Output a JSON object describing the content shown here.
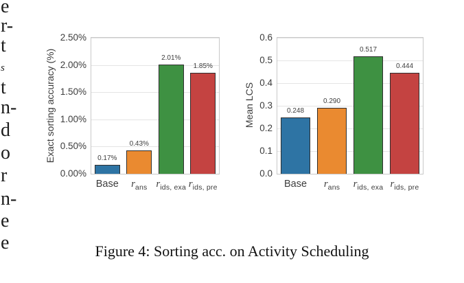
{
  "figure": {
    "caption": "Figure 4: Sorting acc. on Activity Scheduling"
  },
  "left_column_fragments": [
    {
      "text": "e"
    },
    {
      "text": "r-"
    },
    {
      "text": "t"
    },
    {
      "text": "s",
      "style": "small-italic"
    },
    {
      "text": "t"
    },
    {
      "text": "n-"
    },
    {
      "text": "d"
    },
    {
      "text": "o"
    },
    {
      "text": "r"
    },
    {
      "text": "n-"
    },
    {
      "text": "e"
    },
    {
      "text": "e"
    }
  ],
  "colors": {
    "bar_series": [
      "#2e74a4",
      "#ea8a30",
      "#3e9142",
      "#c44341"
    ],
    "bar_edge": "#2e2e2e",
    "gridline": "#e4e4e4",
    "plot_frame": "#c8c8c8",
    "axis_text": "#3c3c3c",
    "caption_text": "#111111"
  },
  "chart_data": [
    {
      "type": "bar",
      "title": "",
      "xlabel": "",
      "ylabel": "Exact sorting accuracy (%)",
      "categories": [
        {
          "main": "Base",
          "italic": false,
          "sub": ""
        },
        {
          "main": "r",
          "italic": true,
          "sub": "ans"
        },
        {
          "main": "r",
          "italic": true,
          "sub": "ids, exa"
        },
        {
          "main": "r",
          "italic": true,
          "sub": "ids, pre"
        }
      ],
      "category_names": [
        "Base",
        "r_ans",
        "r_ids,exa",
        "r_ids,pre"
      ],
      "values": [
        0.17,
        0.43,
        2.01,
        1.85
      ],
      "value_labels": [
        "0.17%",
        "0.43%",
        "2.01%",
        "1.85%"
      ],
      "ylim": [
        0,
        2.5
      ],
      "yticks": [
        {
          "label": "0.00%",
          "value": 0.0
        },
        {
          "label": "0.50%",
          "value": 0.5
        },
        {
          "label": "1.00%",
          "value": 1.0
        },
        {
          "label": "1.50%",
          "value": 1.5
        },
        {
          "label": "2.00%",
          "value": 2.0
        },
        {
          "label": "2.50%",
          "value": 2.5
        }
      ],
      "grid": true,
      "legend": false
    },
    {
      "type": "bar",
      "title": "",
      "xlabel": "",
      "ylabel": "Mean LCS",
      "categories": [
        {
          "main": "Base",
          "italic": false,
          "sub": ""
        },
        {
          "main": "r",
          "italic": true,
          "sub": "ans"
        },
        {
          "main": "r",
          "italic": true,
          "sub": "ids, exa"
        },
        {
          "main": "r",
          "italic": true,
          "sub": "ids, pre"
        }
      ],
      "category_names": [
        "Base",
        "r_ans",
        "r_ids,exa",
        "r_ids,pre"
      ],
      "values": [
        0.248,
        0.29,
        0.517,
        0.444
      ],
      "value_labels": [
        "0.248",
        "0.290",
        "0.517",
        "0.444"
      ],
      "ylim": [
        0,
        0.6
      ],
      "yticks": [
        {
          "label": "0.0",
          "value": 0.0
        },
        {
          "label": "0.1",
          "value": 0.1
        },
        {
          "label": "0.2",
          "value": 0.2
        },
        {
          "label": "0.3",
          "value": 0.3
        },
        {
          "label": "0.4",
          "value": 0.4
        },
        {
          "label": "0.5",
          "value": 0.5
        },
        {
          "label": "0.6",
          "value": 0.6
        }
      ],
      "grid": true,
      "legend": false
    }
  ]
}
